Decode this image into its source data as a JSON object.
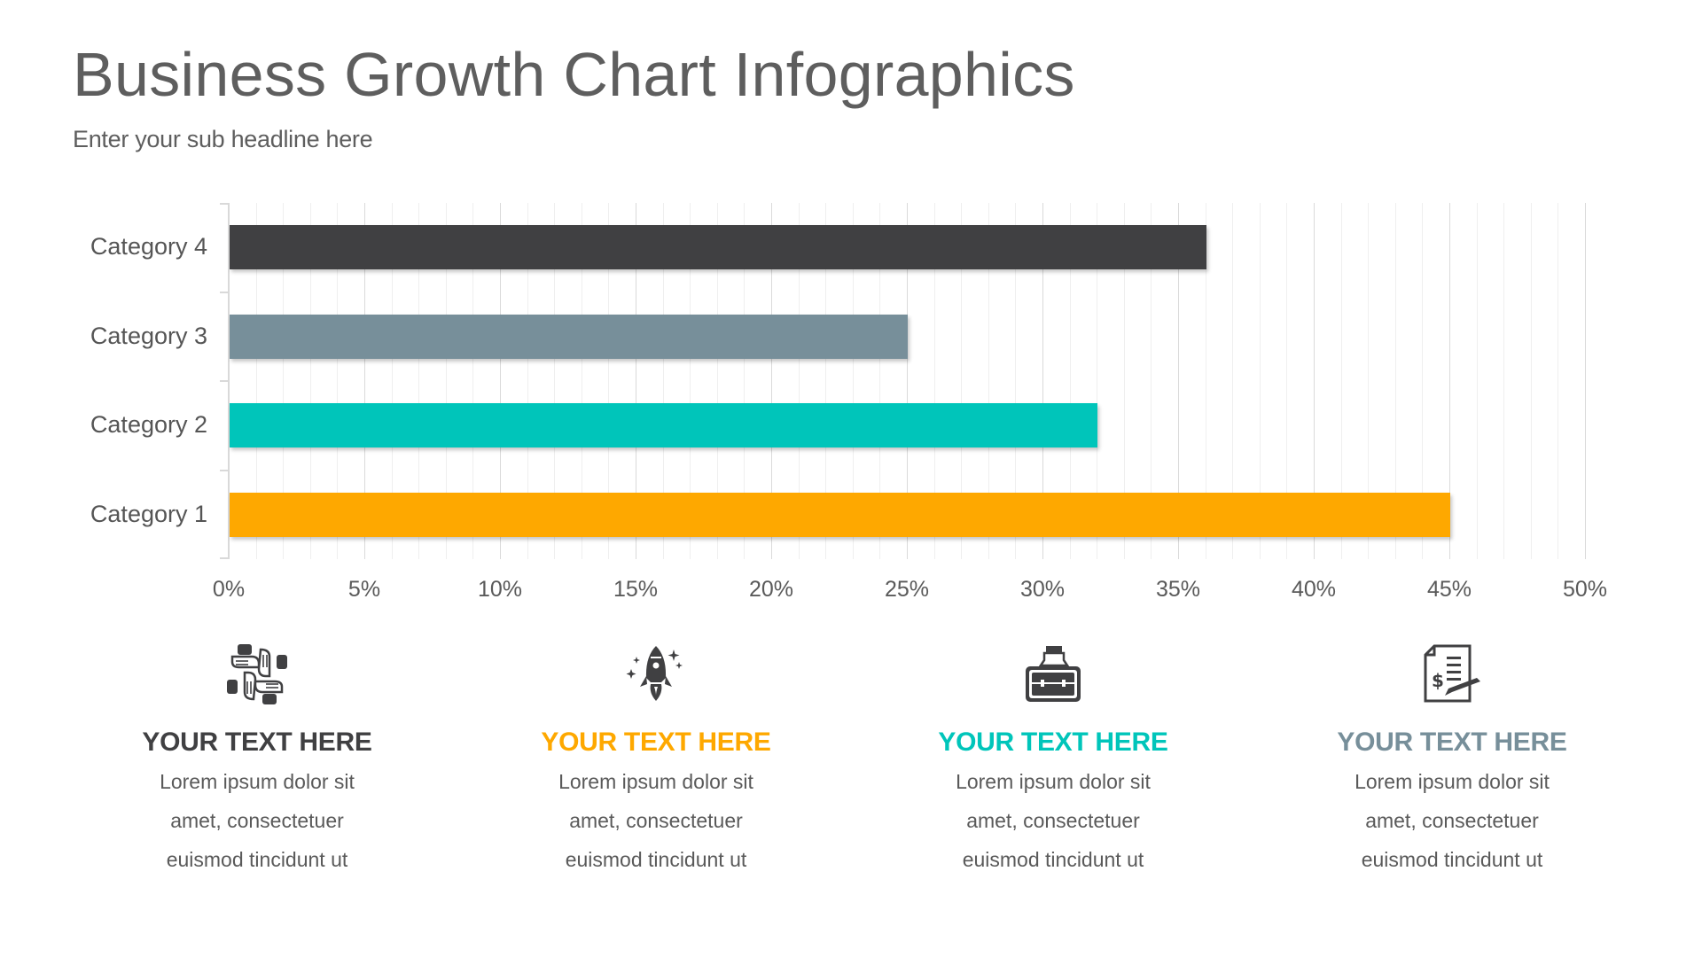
{
  "header": {
    "title": "Business Growth Chart Infographics",
    "subtitle": "Enter your sub headline here"
  },
  "colors": {
    "category_4": "#404042",
    "category_3": "#778f9a",
    "category_2": "#00c5ba",
    "category_1": "#fea800",
    "text": "#5e5e5e"
  },
  "chart_data": {
    "type": "bar",
    "orientation": "horizontal",
    "title": "",
    "xlabel": "",
    "ylabel": "",
    "categories": [
      "Category 4",
      "Category 3",
      "Category 2",
      "Category 1"
    ],
    "values": [
      36,
      25,
      32,
      45
    ],
    "value_format": "percent",
    "xlim": [
      0,
      50
    ],
    "x_ticks": [
      "0%",
      "5%",
      "10%",
      "15%",
      "20%",
      "25%",
      "30%",
      "35%",
      "40%",
      "45%",
      "50%"
    ],
    "grid": {
      "major_every": 5,
      "minor_every": 1,
      "orientation": "vertical"
    },
    "bar_colors": [
      "#404042",
      "#778f9a",
      "#00c5ba",
      "#fea800"
    ],
    "legend": null
  },
  "features": [
    {
      "icon": "teamwork-hands-icon",
      "title": "YOUR TEXT HERE",
      "color": "#404042",
      "lines": [
        "Lorem ipsum dolor sit",
        "amet, consectetuer",
        "euismod tincidunt ut"
      ]
    },
    {
      "icon": "rocket-launch-icon",
      "title": "YOUR TEXT HERE",
      "color": "#fea800",
      "lines": [
        "Lorem ipsum dolor sit",
        "amet, consectetuer",
        "euismod tincidunt ut"
      ]
    },
    {
      "icon": "briefcase-hand-icon",
      "title": "YOUR TEXT HERE",
      "color": "#00c5ba",
      "lines": [
        "Lorem ipsum dolor sit",
        "amet, consectetuer",
        "euismod tincidunt ut"
      ]
    },
    {
      "icon": "invoice-contract-icon",
      "title": "YOUR TEXT HERE",
      "color": "#778f9a",
      "lines": [
        "Lorem ipsum dolor sit",
        "amet, consectetuer",
        "euismod tincidunt ut"
      ]
    }
  ]
}
